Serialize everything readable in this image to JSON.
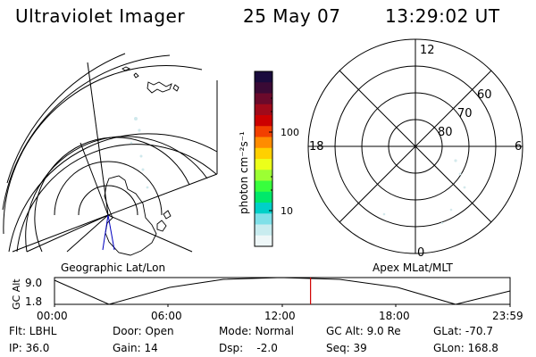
{
  "header": {
    "instrument": "Ultraviolet Imager",
    "date": "25 May 07",
    "time": "13:29:02 UT"
  },
  "colorbar": {
    "label": "photon cm⁻²s⁻¹",
    "tick_100": "100",
    "tick_10": "10",
    "colors": [
      "#1a0b3d",
      "#3a0a35",
      "#6b0a2b",
      "#a00a1a",
      "#cc0000",
      "#f24000",
      "#ff8c00",
      "#ffd000",
      "#ecff1a",
      "#9cff33",
      "#38ff3d",
      "#00e86a",
      "#00d0c8",
      "#7fe0e8",
      "#c8ecef",
      "#eef7f8"
    ]
  },
  "polar_right": {
    "label_12": "12",
    "label_18": "18",
    "label_6": "6",
    "label_0": "0",
    "label_60": "60",
    "label_70": "70",
    "label_80": "80"
  },
  "captions": {
    "geo": "Geographic Lat/Lon",
    "apex": "Apex MLat/MLT"
  },
  "timeline": {
    "ylabel": "GC Alt",
    "y_top": "9.0",
    "y_bottom": "1.8",
    "ticks": [
      "00:00",
      "06:00",
      "12:00",
      "18:00",
      "23:59"
    ],
    "current_time_frac": 0.562
  },
  "footer": {
    "flt": "Flt: LBHL",
    "ip": "IP: 36.0",
    "door": "Door: Open",
    "gain": "Gain: 14",
    "mode": "Mode: Normal",
    "dsp": "Dsp:    -2.0",
    "gcalt": "GC Alt: 9.0 Re",
    "seq": "Seq: 39",
    "glat": "GLat: -70.7",
    "glon": "GLon: 168.8"
  }
}
